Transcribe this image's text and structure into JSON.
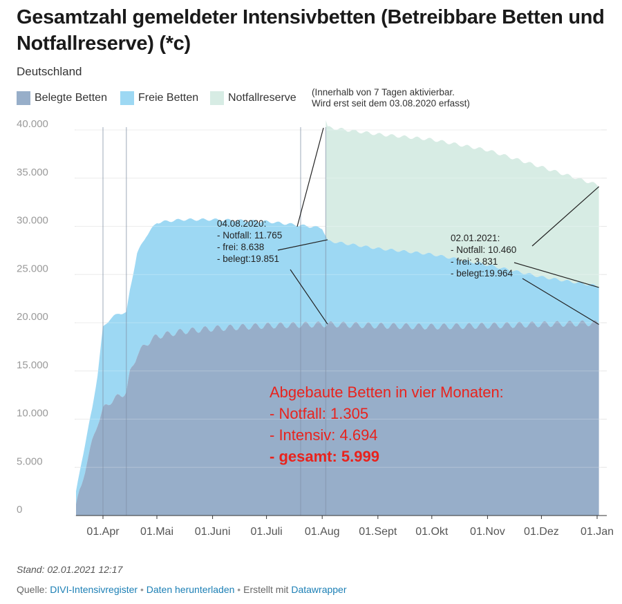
{
  "header": {
    "title": "Gesamtzahl gemeldeter Intensivbetten (Betreibbare Betten und Notfallreserve) (*c)",
    "subtitle": "Deutschland"
  },
  "legend": {
    "items": [
      {
        "label": "Belegte Betten",
        "color": "#97aec9"
      },
      {
        "label": "Freie Betten",
        "color": "#9dd8f3"
      },
      {
        "label": "Notfallreserve",
        "color": "#d7ece4"
      }
    ],
    "note": "(Innerhalb von 7 Tagen aktivierbar.\nWird erst seit dem 03.08.2020 erfasst)"
  },
  "chart_data": {
    "type": "area",
    "x_start": "2020-03-17",
    "x_end": "2021-01-02",
    "xlim": [
      "2020-03-17",
      "2021-01-01"
    ],
    "ylim": [
      0,
      40000
    ],
    "y_ticks": [
      "40.000",
      "35.000",
      "30.000",
      "25.000",
      "20.000",
      "15.000",
      "10.000",
      "5.000",
      "0"
    ],
    "x_ticks": [
      "01.Apr",
      "01.Mai",
      "01.Juni",
      "01.Juli",
      "01.Aug",
      "01.Sept",
      "01.Okt",
      "01.Nov",
      "01.Dez",
      "01.Jan"
    ],
    "grid": true,
    "stacked": true,
    "series": [
      {
        "name": "Belegte Betten",
        "color": "#97aec9",
        "points": [
          [
            "2020-03-17",
            1200
          ],
          [
            "2020-03-20",
            3000
          ],
          [
            "2020-03-23",
            5600
          ],
          [
            "2020-03-26",
            7600
          ],
          [
            "2020-03-29",
            9600
          ],
          [
            "2020-04-01",
            11000
          ],
          [
            "2020-04-05",
            11800
          ],
          [
            "2020-04-10",
            12400
          ],
          [
            "2020-04-14",
            12800
          ],
          [
            "2020-04-16",
            14800
          ],
          [
            "2020-04-20",
            16700
          ],
          [
            "2020-04-25",
            17800
          ],
          [
            "2020-05-01",
            18600
          ],
          [
            "2020-05-15",
            19100
          ],
          [
            "2020-06-01",
            19400
          ],
          [
            "2020-07-01",
            19700
          ],
          [
            "2020-08-04",
            19851
          ],
          [
            "2020-09-01",
            19700
          ],
          [
            "2020-10-01",
            19600
          ],
          [
            "2020-11-01",
            19700
          ],
          [
            "2020-12-01",
            19850
          ],
          [
            "2021-01-02",
            19964
          ]
        ]
      },
      {
        "name": "Freie Betten",
        "color": "#9dd8f3",
        "points": [
          [
            "2020-03-17",
            1200
          ],
          [
            "2020-03-20",
            2500
          ],
          [
            "2020-03-23",
            2700
          ],
          [
            "2020-03-26",
            3500
          ],
          [
            "2020-03-29",
            5000
          ],
          [
            "2020-04-01",
            8500
          ],
          [
            "2020-04-04",
            8600
          ],
          [
            "2020-04-10",
            8600
          ],
          [
            "2020-04-14",
            8200
          ],
          [
            "2020-04-16",
            8600
          ],
          [
            "2020-04-20",
            10500
          ],
          [
            "2020-04-25",
            11200
          ],
          [
            "2020-05-01",
            11800
          ],
          [
            "2020-05-15",
            11600
          ],
          [
            "2020-06-01",
            11300
          ],
          [
            "2020-07-01",
            10800
          ],
          [
            "2020-08-01",
            10000
          ],
          [
            "2020-08-04",
            8638
          ],
          [
            "2020-09-01",
            8000
          ],
          [
            "2020-10-01",
            7500
          ],
          [
            "2020-11-01",
            6300
          ],
          [
            "2020-12-01",
            4900
          ],
          [
            "2021-01-02",
            3831
          ]
        ]
      },
      {
        "name": "Notfallreserve",
        "color": "#d7ece4",
        "points": [
          [
            "2020-08-03",
            12100
          ],
          [
            "2020-08-04",
            11765
          ],
          [
            "2020-09-01",
            11850
          ],
          [
            "2020-10-01",
            11900
          ],
          [
            "2020-11-01",
            11900
          ],
          [
            "2020-12-01",
            11400
          ],
          [
            "2021-01-02",
            10460
          ]
        ]
      }
    ],
    "annotations": [
      {
        "date": "04.08.2020:",
        "lines": [
          "- Notfall: 11.765",
          "- frei: 8.638",
          "- belegt:19.851"
        ]
      },
      {
        "date": "02.01.2021:",
        "lines": [
          "- Notfall: 10.460",
          "- frei: 3.831",
          "- belegt:19.964"
        ]
      }
    ],
    "summary": {
      "color": "#e8231d",
      "lines": [
        "Abgebaute Betten in vier Monaten:",
        "- Notfall: 1.305",
        "- Intensiv: 4.694",
        "- gesamt: 5.999"
      ]
    }
  },
  "footer": {
    "stand": "Stand: 02.01.2021 12:17",
    "source_prefix": "Quelle:",
    "source_link": "DIVI-Intensivregister",
    "separator": " • ",
    "download_link": "Daten herunterladen",
    "created_with": "Erstellt mit",
    "tool_link": "Datawrapper"
  }
}
